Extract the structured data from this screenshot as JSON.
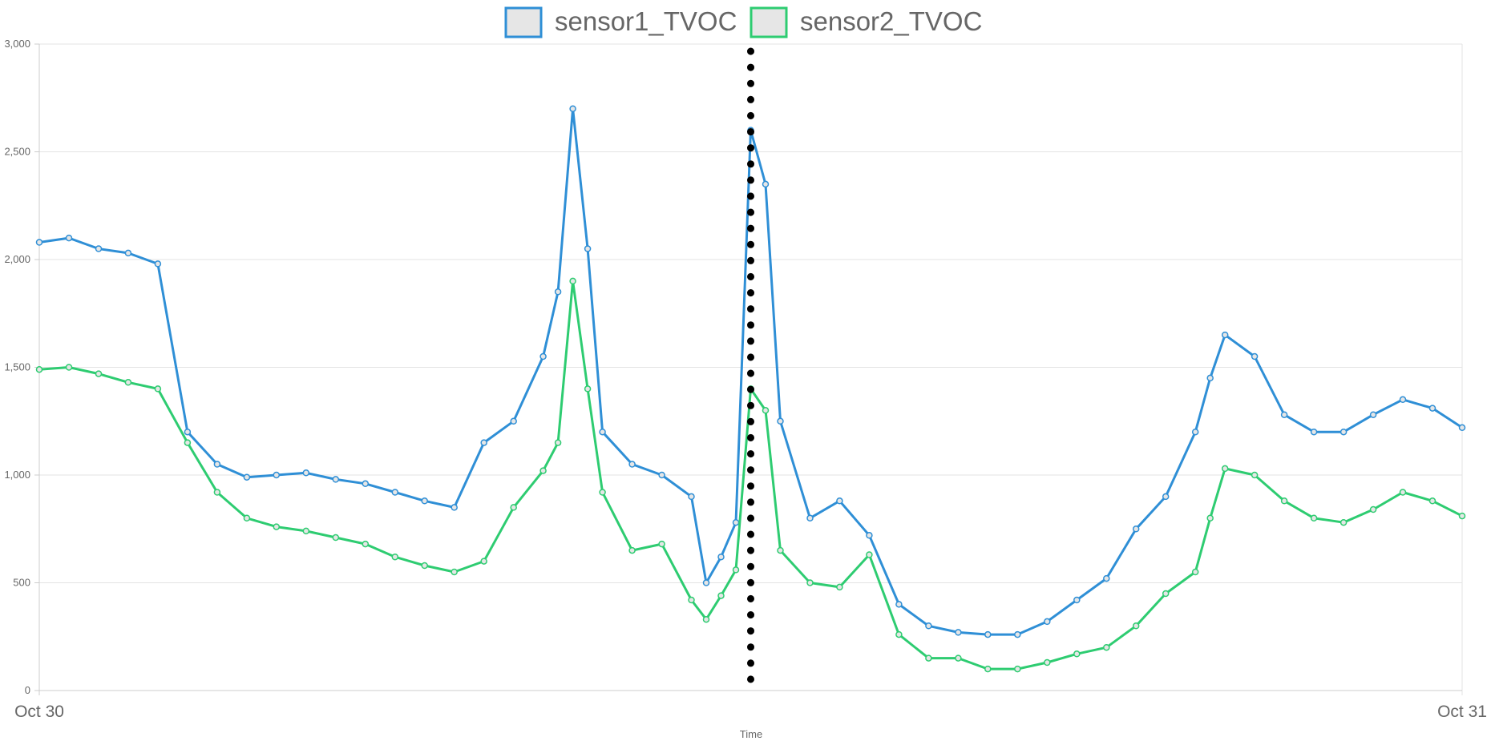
{
  "chart_data": {
    "type": "line",
    "x_labels": [
      "Oct 30",
      "Oct 31"
    ],
    "xlabel": "Time",
    "ylabel": "",
    "ylim": [
      0,
      3000
    ],
    "y_ticks": [
      "0",
      "500",
      "1,000",
      "1,500",
      "2,000",
      "2,500",
      "3,000"
    ],
    "y_tick_values": [
      0,
      500,
      1000,
      1500,
      2000,
      2500,
      3000
    ],
    "grid": true,
    "legend_position": "top-center",
    "marker_line_x_hours": 12.0,
    "x_hours": [
      0,
      0.5,
      1,
      1.5,
      2,
      2.5,
      3,
      3.5,
      4,
      4.5,
      5,
      5.5,
      6,
      6.5,
      7,
      7.5,
      8,
      8.5,
      8.75,
      9,
      9.25,
      9.5,
      10,
      10.5,
      11,
      11.25,
      11.5,
      11.75,
      12,
      12.25,
      12.5,
      13,
      13.5,
      14,
      14.5,
      15,
      15.5,
      16,
      16.5,
      17,
      17.5,
      18,
      18.5,
      19,
      19.5,
      19.75,
      20,
      20.5,
      21,
      21.5,
      22,
      22.5,
      23,
      23.5,
      24
    ],
    "series": [
      {
        "name": "sensor1_TVOC",
        "color": "#2f8fd6",
        "values": [
          2080,
          2100,
          2050,
          2030,
          1980,
          1200,
          1050,
          990,
          1000,
          1010,
          980,
          960,
          920,
          880,
          850,
          1150,
          1250,
          1550,
          1850,
          2700,
          2050,
          1200,
          1050,
          1000,
          900,
          500,
          620,
          780,
          2600,
          2350,
          1250,
          800,
          880,
          720,
          400,
          300,
          270,
          260,
          260,
          320,
          420,
          520,
          750,
          900,
          1200,
          1450,
          1650,
          1550,
          1280,
          1200,
          1200,
          1280,
          1350,
          1310,
          1220
        ]
      },
      {
        "name": "sensor2_TVOC",
        "color": "#2ecc71",
        "values": [
          1490,
          1500,
          1470,
          1430,
          1400,
          1150,
          920,
          800,
          760,
          740,
          710,
          680,
          620,
          580,
          550,
          600,
          850,
          1020,
          1150,
          1900,
          1400,
          920,
          650,
          680,
          420,
          330,
          440,
          560,
          1400,
          1300,
          650,
          500,
          480,
          630,
          260,
          150,
          150,
          100,
          100,
          130,
          170,
          200,
          300,
          450,
          550,
          800,
          1030,
          1000,
          880,
          800,
          780,
          840,
          920,
          880,
          810
        ]
      }
    ]
  }
}
